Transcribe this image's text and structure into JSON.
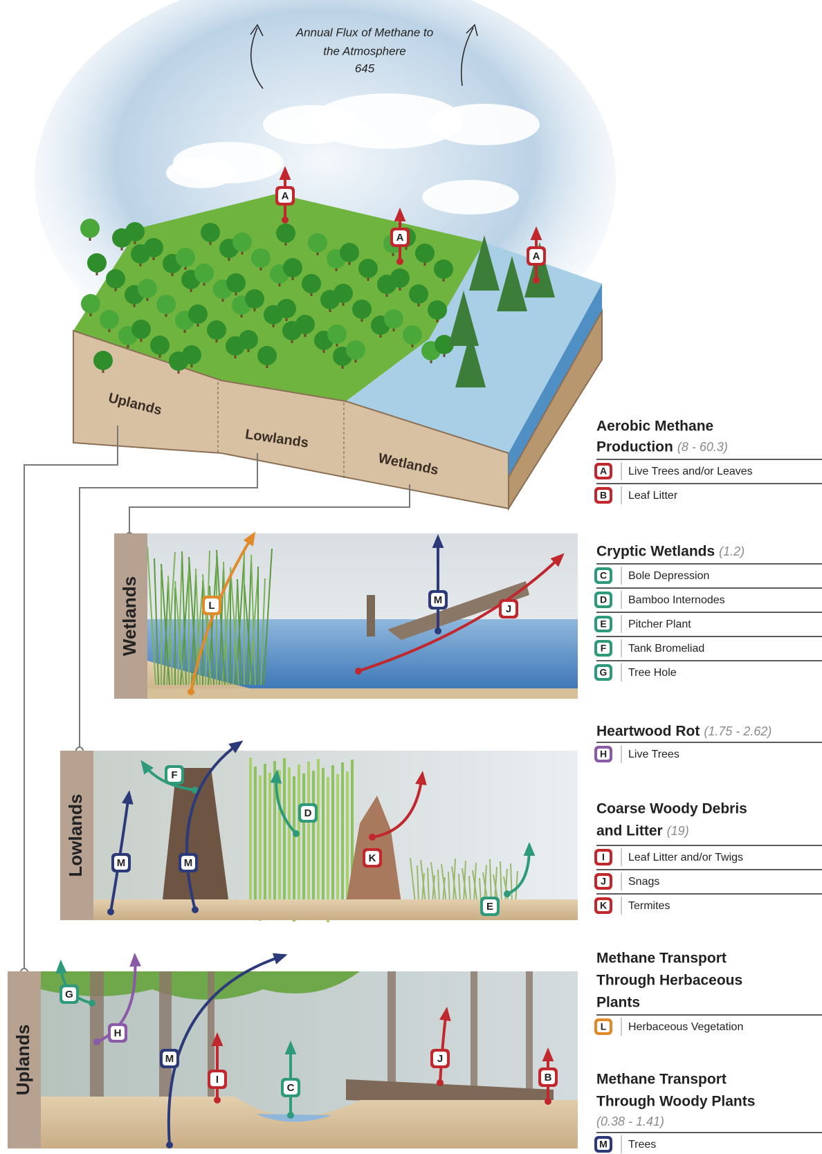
{
  "header": {
    "flux_label": [
      "Annual Flux of Methane to",
      "the Atmosphere",
      "645"
    ]
  },
  "block": {
    "zones": [
      "Uplands",
      "Lowlands",
      "Wetlands"
    ],
    "markers": [
      "A",
      "A",
      "A"
    ]
  },
  "panels": [
    {
      "label": "Wetlands",
      "markers": [
        "L",
        "M",
        "J"
      ]
    },
    {
      "label": "Lowlands",
      "markers": [
        "F",
        "M",
        "M",
        "D",
        "K",
        "E"
      ]
    },
    {
      "label": "Uplands",
      "markers": [
        "G",
        "H",
        "M",
        "I",
        "C",
        "J",
        "B"
      ]
    }
  ],
  "legend": [
    {
      "title": [
        "Aerobic Methane",
        "Production"
      ],
      "range": "(8 - 60.3)",
      "color": "#c0282e",
      "items": [
        {
          "letter": "A",
          "label": "Live Trees and/or Leaves"
        },
        {
          "letter": "B",
          "label": "Leaf Litter"
        }
      ]
    },
    {
      "title": [
        "Cryptic Wetlands"
      ],
      "range": "(1.2)",
      "color": "#2f9a7a",
      "items": [
        {
          "letter": "C",
          "label": "Bole Depression"
        },
        {
          "letter": "D",
          "label": "Bamboo Internodes"
        },
        {
          "letter": "E",
          "label": "Pitcher Plant"
        },
        {
          "letter": "F",
          "label": "Tank Bromeliad"
        },
        {
          "letter": "G",
          "label": "Tree Hole"
        }
      ]
    },
    {
      "title": [
        "Heartwood Rot"
      ],
      "range": "(1.75 - 2.62)",
      "color": "#8a5aa8",
      "items": [
        {
          "letter": "H",
          "label": "Live Trees"
        }
      ]
    },
    {
      "title": [
        "Coarse Woody Debris",
        "and Litter"
      ],
      "range": "(19)",
      "color": "#c0282e",
      "items": [
        {
          "letter": "I",
          "label": "Leaf Litter and/or Twigs"
        },
        {
          "letter": "J",
          "label": "Snags"
        },
        {
          "letter": "K",
          "label": "Termites"
        }
      ]
    },
    {
      "title": [
        "Methane Transport",
        "Through Herbaceous",
        "Plants"
      ],
      "color": "#e08a2a",
      "items": [
        {
          "letter": "L",
          "label": "Herbaceous Vegetation"
        }
      ]
    },
    {
      "title": [
        "Methane Transport",
        "Through Woody Plants"
      ],
      "range": "(0.38 - 1.41)",
      "color": "#2c3a7a",
      "items": [
        {
          "letter": "M",
          "label": "Trees"
        }
      ]
    }
  ]
}
